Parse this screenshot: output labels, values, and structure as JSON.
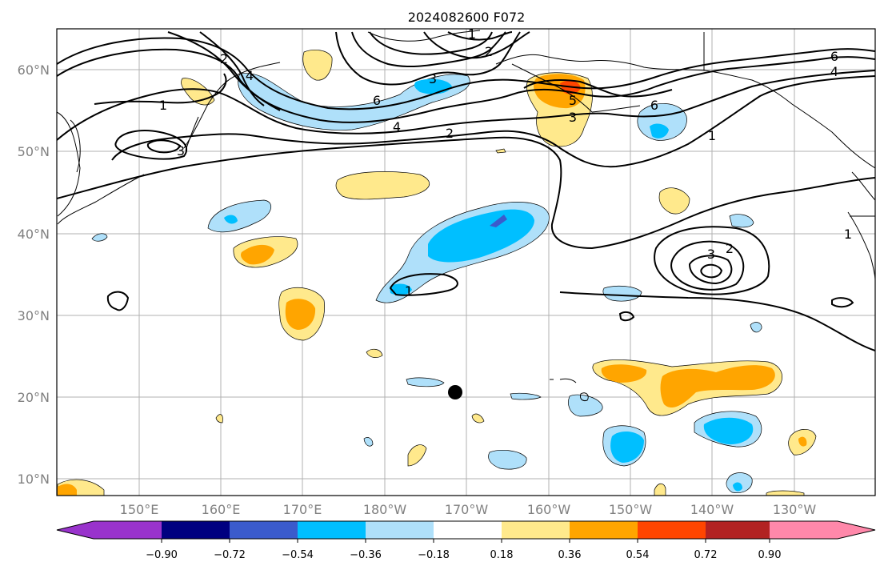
{
  "map": {
    "title": "2024082600 F072",
    "lon_labels": [
      "150°E",
      "160°E",
      "170°E",
      "180°W",
      "170°W",
      "160°W",
      "150°W",
      "140°W",
      "130°W"
    ],
    "lat_labels": [
      "60°N",
      "50°N",
      "40°N",
      "30°N",
      "20°N",
      "10°N"
    ],
    "contour_labels": [
      "1",
      "2",
      "3",
      "4",
      "5",
      "6",
      "1",
      "2",
      "3",
      "4",
      "6",
      "1",
      "2",
      "3",
      "6",
      "1",
      "2",
      "3",
      "4",
      "1"
    ],
    "marker": {
      "name": "location-dot",
      "lon": -171.5,
      "lat": 20.5
    }
  },
  "colorbar": {
    "ticks": [
      "−0.90",
      "−0.72",
      "−0.54",
      "−0.36",
      "−0.18",
      "0.18",
      "0.36",
      "0.54",
      "0.72",
      "0.90"
    ],
    "colors": {
      "under": "#9933cc",
      "b1": "#000080",
      "b2": "#3b5bcc",
      "b3": "#00bfff",
      "b4": "#afe0fa",
      "b5": "#ffffff",
      "b6": "#ffe98c",
      "b7": "#ffa500",
      "b8": "#ff4500",
      "b9": "#b22222",
      "over": "#ff88aa"
    }
  }
}
